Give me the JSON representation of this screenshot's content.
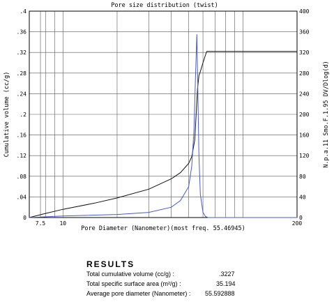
{
  "chart_data": {
    "type": "line",
    "title": "Pore size distribution (twist)",
    "xlabel": "Pore Diameter (Nanometer)",
    "xlabel_note": "(most freq. 55.46945)",
    "ylabel_left": "Cumulative volume (cc/g)",
    "ylabel_right": "N.p.a.11 Smo.F.1.95 DV/Dlog(d)",
    "x_scale": "log",
    "xlim": [
      6.5,
      200
    ],
    "ylim_left": [
      0,
      0.4
    ],
    "ylim_right": [
      0,
      400
    ],
    "grid": true,
    "x_tick_labels": [
      {
        "value": 7.5,
        "label": "7.5"
      },
      {
        "value": 10,
        "label": "10"
      },
      {
        "value": 200,
        "label": "200"
      }
    ],
    "x_gridlines": [
      6.5,
      7.5,
      8,
      9,
      10,
      20,
      30,
      40,
      50,
      60,
      70,
      80,
      90,
      100,
      200
    ],
    "y_left_ticks": [
      {
        "value": 0,
        "label": "0"
      },
      {
        "value": 0.04,
        "label": ".04"
      },
      {
        "value": 0.08,
        "label": ".08"
      },
      {
        "value": 0.12,
        "label": ".12"
      },
      {
        "value": 0.16,
        "label": ".16"
      },
      {
        "value": 0.2,
        "label": ".2"
      },
      {
        "value": 0.24,
        "label": ".24"
      },
      {
        "value": 0.28,
        "label": ".28"
      },
      {
        "value": 0.32,
        "label": ".32"
      },
      {
        "value": 0.36,
        "label": ".36"
      },
      {
        "value": 0.4,
        "label": ".4"
      }
    ],
    "y_right_ticks": [
      {
        "value": 0,
        "label": "0"
      },
      {
        "value": 40,
        "label": "40"
      },
      {
        "value": 80,
        "label": "80"
      },
      {
        "value": 120,
        "label": "120"
      },
      {
        "value": 160,
        "label": "160"
      },
      {
        "value": 200,
        "label": "200"
      },
      {
        "value": 240,
        "label": "240"
      },
      {
        "value": 280,
        "label": "280"
      },
      {
        "value": 320,
        "label": "320"
      },
      {
        "value": 360,
        "label": "360"
      },
      {
        "value": 400,
        "label": "400"
      }
    ],
    "series": [
      {
        "color": "#111111",
        "axis": "left",
        "points": [
          [
            6.5,
            0
          ],
          [
            8,
            0.008
          ],
          [
            10,
            0.016
          ],
          [
            15,
            0.028
          ],
          [
            20,
            0.038
          ],
          [
            30,
            0.055
          ],
          [
            40,
            0.075
          ],
          [
            45,
            0.087
          ],
          [
            50,
            0.105
          ],
          [
            52,
            0.118
          ],
          [
            54,
            0.15
          ],
          [
            55,
            0.2
          ],
          [
            56,
            0.25
          ],
          [
            57,
            0.275
          ],
          [
            58,
            0.283
          ],
          [
            60,
            0.3
          ],
          [
            62,
            0.315
          ],
          [
            63,
            0.322
          ],
          [
            200,
            0.322
          ]
        ]
      },
      {
        "color": "#4a5bc4",
        "axis": "right",
        "points": [
          [
            6.5,
            0
          ],
          [
            10,
            3
          ],
          [
            20,
            6
          ],
          [
            30,
            10
          ],
          [
            40,
            20
          ],
          [
            45,
            33
          ],
          [
            50,
            60
          ],
          [
            52,
            100
          ],
          [
            53.5,
            170
          ],
          [
            54.5,
            270
          ],
          [
            55.47,
            355
          ],
          [
            56.2,
            250
          ],
          [
            57,
            120
          ],
          [
            58,
            45
          ],
          [
            60,
            10
          ],
          [
            62,
            2
          ],
          [
            64,
            0
          ],
          [
            200,
            0
          ]
        ]
      }
    ]
  },
  "results": {
    "heading": "RESULTS",
    "rows": [
      {
        "label": "Total cumulative volume (cc/g) :",
        "value": ".3227"
      },
      {
        "label": "Total specific surface area (m²/g) :",
        "value": "35.194"
      },
      {
        "label": "Average pore diameter (Nanometer) :",
        "value": "55.592888"
      }
    ]
  }
}
